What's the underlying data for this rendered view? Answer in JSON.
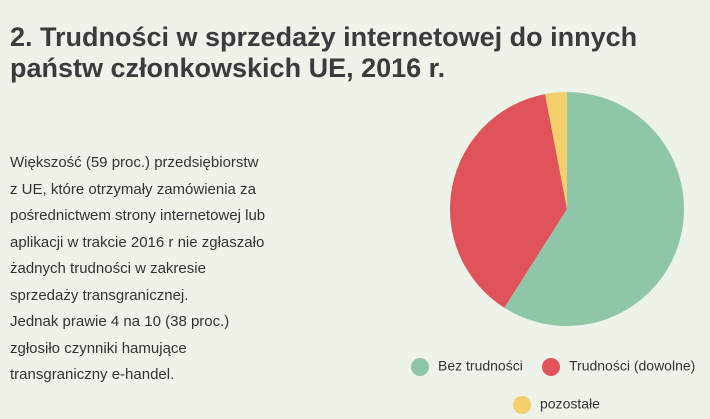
{
  "chart_data": {
    "type": "pie",
    "title": "2. Trudności w sprzedaży internetowej do innych państw członkowskich UE, 2016 r.",
    "description": [
      "Większość (59 proc.) przedsiębiorstw",
      "z UE, które otrzymały zamówienia za",
      "pośrednictwem strony internetowej lub",
      "aplikacji w trakcie 2016 r nie zgłaszało",
      "żadnych trudności w zakresie",
      "sprzedaży transgranicznej.",
      "Jednak prawie 4 na 10 (38 proc.)",
      "zgłosiło czynniki hamujące",
      "transgraniczny e-handel."
    ],
    "categories": [
      "Bez trudności",
      "Trudności (dowolne)",
      "pozostałe"
    ],
    "values": [
      59,
      38,
      3
    ],
    "colors": [
      "#8fc6a7",
      "#e0535a",
      "#f4cf6b"
    ]
  }
}
